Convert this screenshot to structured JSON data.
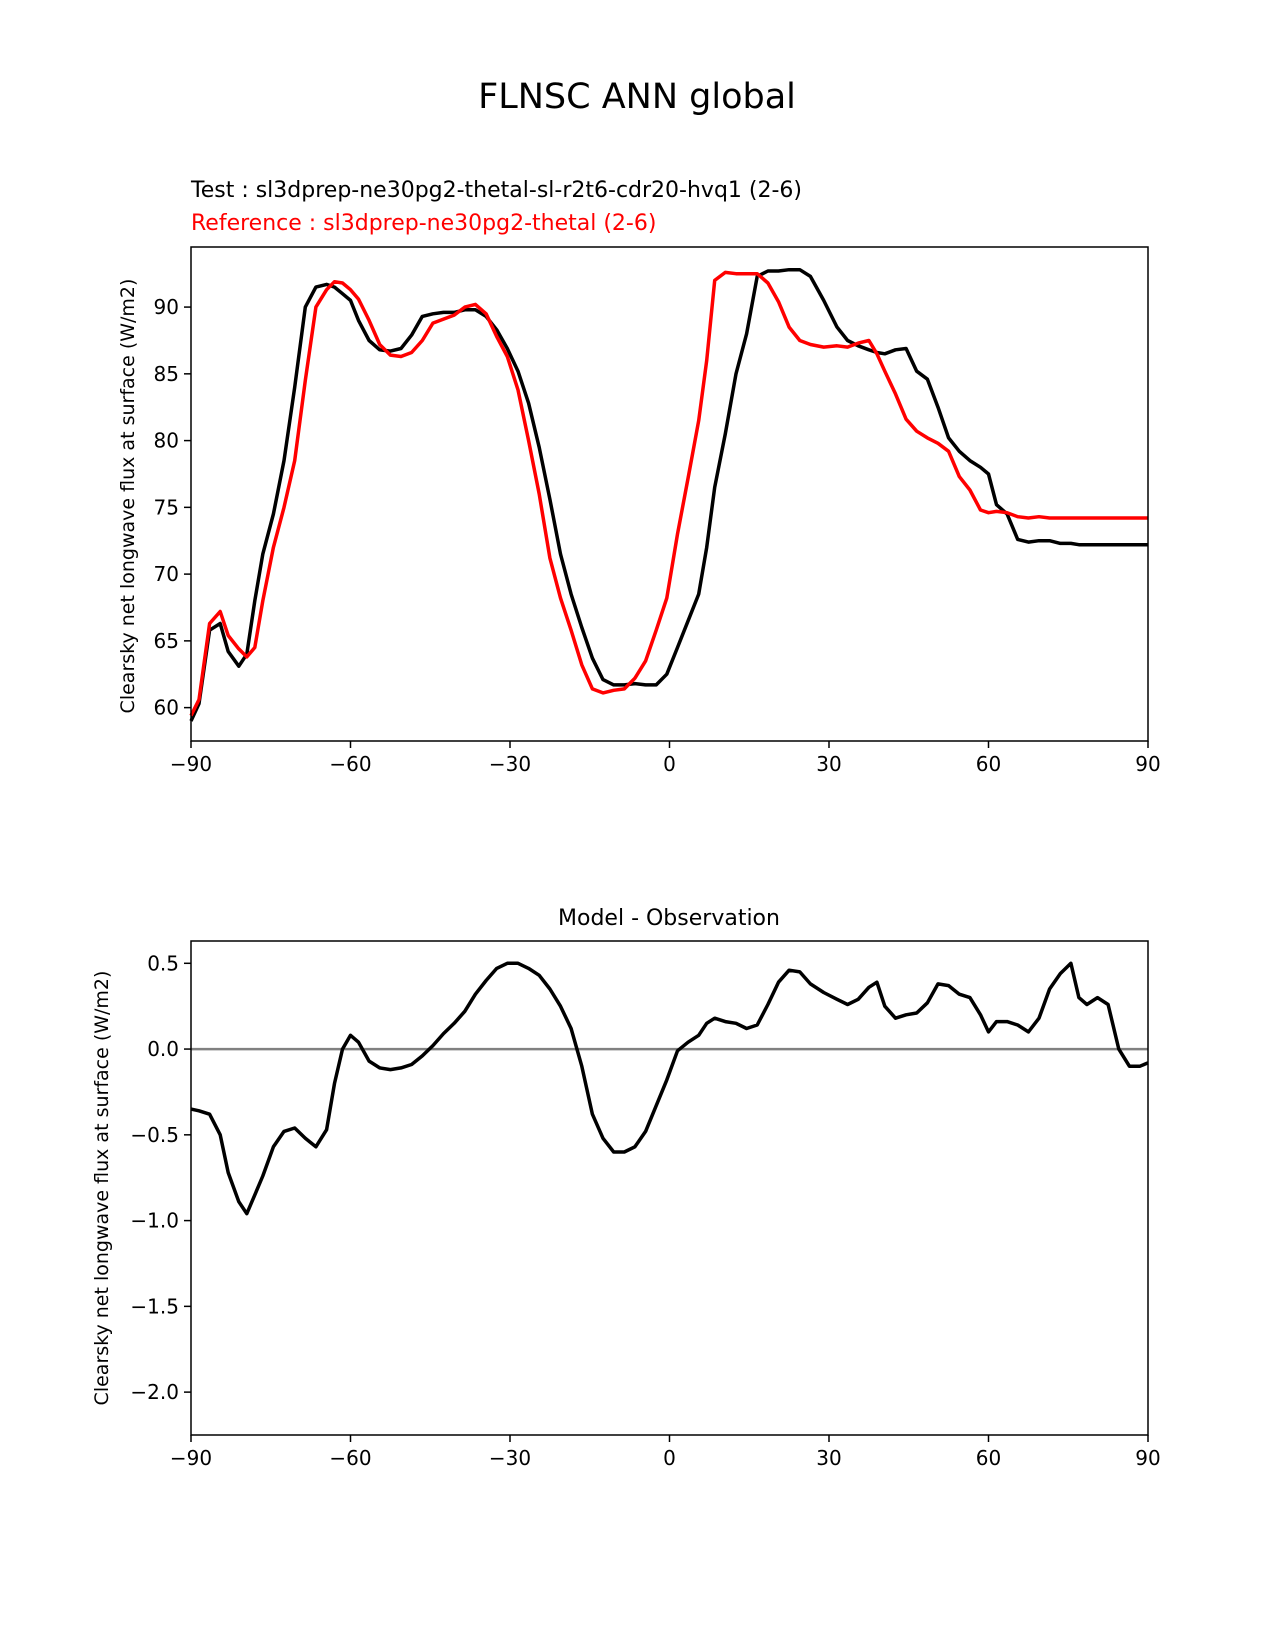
{
  "figure": {
    "title": "FLNSC ANN global"
  },
  "colors": {
    "test": "#000000",
    "reference": "#ff0000",
    "diff": "#000000",
    "zero_line": "#808080"
  },
  "chart_data": [
    {
      "type": "line",
      "test_label": "Test : sl3dprep-ne30pg2-thetal-sl-r2t6-cdr20-hvq1 (2-6)",
      "reference_label": "Reference : sl3dprep-ne30pg2-thetal (2-6)",
      "xlabel": "",
      "ylabel": "Clearsky net longwave flux at surface (W/m2)",
      "xlim": [
        -90,
        90
      ],
      "ylim": [
        57.5,
        94.5
      ],
      "xticks": [
        -90,
        -60,
        -30,
        0,
        30,
        60,
        90
      ],
      "xtick_labels": [
        "−90",
        "−60",
        "−30",
        "0",
        "30",
        "60",
        "90"
      ],
      "yticks": [
        60,
        65,
        70,
        75,
        80,
        85,
        90
      ],
      "ytick_labels": [
        "60",
        "65",
        "70",
        "75",
        "80",
        "85",
        "90"
      ],
      "grid": false,
      "series": [
        {
          "key": "test",
          "x": [
            -90,
            -88.5,
            -86.5,
            -84.5,
            -83,
            -81,
            -79.5,
            -78,
            -76.5,
            -74.5,
            -72.5,
            -70.5,
            -68.5,
            -66.5,
            -64.5,
            -63,
            -61.5,
            -60,
            -58.5,
            -56.5,
            -54.5,
            -52.5,
            -50.5,
            -48.5,
            -46.5,
            -44.5,
            -42.5,
            -40.5,
            -38.5,
            -36.5,
            -34.5,
            -32.5,
            -30.5,
            -28.5,
            -26.5,
            -24.5,
            -22.5,
            -20.5,
            -18.5,
            -16.5,
            -14.5,
            -12.5,
            -10.5,
            -8.5,
            -6.5,
            -4.5,
            -2.5,
            -0.5,
            1.5,
            3.5,
            5.5,
            7,
            8.5,
            10.5,
            12.5,
            14.5,
            16.5,
            18.5,
            20.5,
            22.5,
            24.5,
            26.5,
            29,
            31.5,
            33.5,
            35.5,
            37.5,
            39,
            40.5,
            42.5,
            44.5,
            46.5,
            48.5,
            50.5,
            52.5,
            54.5,
            56.5,
            58.5,
            60,
            61.5,
            63.5,
            65.5,
            67.5,
            69.5,
            71.5,
            73.5,
            75.5,
            77,
            78.5,
            80.5,
            82.5,
            84.5,
            86.5,
            88.5,
            90
          ],
          "y": [
            59,
            60.3,
            65.8,
            66.3,
            64.2,
            63.1,
            64,
            68,
            71.5,
            74.5,
            78.5,
            84,
            90,
            91.5,
            91.7,
            91.5,
            91,
            90.5,
            89,
            87.5,
            86.8,
            86.7,
            86.9,
            87.9,
            89.3,
            89.5,
            89.6,
            89.6,
            89.8,
            89.8,
            89.3,
            88.3,
            86.9,
            85.2,
            82.8,
            79.5,
            75.6,
            71.5,
            68.5,
            66,
            63.7,
            62.1,
            61.7,
            61.7,
            61.8,
            61.7,
            61.7,
            62.5,
            64.5,
            66.5,
            68.5,
            72,
            76.5,
            80.5,
            85,
            88,
            92.3,
            92.7,
            92.7,
            92.8,
            92.8,
            92.3,
            90.5,
            88.5,
            87.5,
            87.1,
            86.8,
            86.6,
            86.5,
            86.8,
            86.9,
            85.2,
            84.6,
            82.5,
            80.2,
            79.2,
            78.5,
            78,
            77.5,
            75.2,
            74.5,
            72.6,
            72.4,
            72.5,
            72.5,
            72.3,
            72.3,
            72.2,
            72.2,
            72.2,
            72.2,
            72.2,
            72.2,
            72.2,
            72.2
          ]
        },
        {
          "key": "reference",
          "x": [
            -90,
            -88.5,
            -86.5,
            -84.5,
            -83,
            -81,
            -79.5,
            -78,
            -76.5,
            -74.5,
            -72.5,
            -70.5,
            -68.5,
            -66.5,
            -64.5,
            -63,
            -61.5,
            -60,
            -58.5,
            -56.5,
            -54.5,
            -52.5,
            -50.5,
            -48.5,
            -46.5,
            -44.5,
            -42.5,
            -40.5,
            -38.5,
            -36.5,
            -34.5,
            -32.5,
            -30.5,
            -28.5,
            -26.5,
            -24.5,
            -22.5,
            -20.5,
            -18.5,
            -16.5,
            -14.5,
            -12.5,
            -10.5,
            -8.5,
            -6.5,
            -4.5,
            -2.5,
            -0.5,
            1.5,
            3.5,
            5.5,
            7,
            8.5,
            10.5,
            12.5,
            14.5,
            16.5,
            18.5,
            20.5,
            22.5,
            24.5,
            26.5,
            29,
            31.5,
            33.5,
            35.5,
            37.5,
            39,
            40.5,
            42.5,
            44.5,
            46.5,
            48.5,
            50.5,
            52.5,
            54.5,
            56.5,
            58.5,
            60,
            61.5,
            63.5,
            65.5,
            67.5,
            69.5,
            71.5,
            73.5,
            75.5,
            77,
            78.5,
            80.5,
            82.5,
            84.5,
            86.5,
            88.5,
            90
          ],
          "y": [
            59.4,
            60.6,
            66.3,
            67.2,
            65.4,
            64.4,
            63.8,
            64.5,
            68,
            72,
            75,
            78.5,
            84.5,
            90,
            91.3,
            91.9,
            91.8,
            91.3,
            90.6,
            89,
            87.2,
            86.4,
            86.3,
            86.6,
            87.5,
            88.8,
            89.1,
            89.4,
            90,
            90.2,
            89.5,
            87.8,
            86.3,
            83.8,
            80,
            76,
            71.2,
            68.2,
            65.8,
            63.2,
            61.4,
            61.1,
            61.3,
            61.4,
            62.2,
            63.5,
            65.8,
            68.2,
            73,
            77.2,
            81.5,
            86,
            92,
            92.6,
            92.5,
            92.5,
            92.5,
            91.8,
            90.4,
            88.5,
            87.5,
            87.2,
            87,
            87.1,
            87,
            87.3,
            87.5,
            86.5,
            85.2,
            83.5,
            81.6,
            80.7,
            80.2,
            79.8,
            79.2,
            77.3,
            76.3,
            74.8,
            74.6,
            74.7,
            74.6,
            74.3,
            74.2,
            74.3,
            74.2,
            74.2,
            74.2,
            74.2,
            74.2,
            74.2,
            74.2,
            74.2,
            74.2,
            74.2,
            74.2
          ]
        }
      ]
    },
    {
      "type": "line",
      "title": "Model - Observation",
      "xlabel": "",
      "ylabel": "Clearsky net longwave flux at surface (W/m2)",
      "xlim": [
        -90,
        90
      ],
      "ylim": [
        -2.25,
        0.63
      ],
      "xticks": [
        -90,
        -60,
        -30,
        0,
        30,
        60,
        90
      ],
      "xtick_labels": [
        "−90",
        "−60",
        "−30",
        "0",
        "30",
        "60",
        "90"
      ],
      "yticks": [
        -2.0,
        -1.5,
        -1.0,
        -0.5,
        0.0,
        0.5
      ],
      "ytick_labels": [
        "−2.0",
        "−1.5",
        "−1.0",
        "−0.5",
        "0.0",
        "0.5"
      ],
      "grid": false,
      "zero_line": true,
      "series": [
        {
          "key": "diff",
          "x": [
            -90,
            -88.5,
            -86.5,
            -84.5,
            -83,
            -81,
            -79.5,
            -78,
            -76.5,
            -74.5,
            -72.5,
            -70.5,
            -68.5,
            -66.5,
            -64.5,
            -63,
            -61.5,
            -60,
            -58.5,
            -56.5,
            -54.5,
            -52.5,
            -50.5,
            -48.5,
            -46.5,
            -44.5,
            -42.5,
            -40.5,
            -38.5,
            -36.5,
            -34.5,
            -32.5,
            -30.5,
            -28.5,
            -26.5,
            -24.5,
            -22.5,
            -20.5,
            -18.5,
            -16.5,
            -14.5,
            -12.5,
            -10.5,
            -8.5,
            -6.5,
            -4.5,
            -2.5,
            -0.5,
            1.5,
            3.5,
            5.5,
            7,
            8.5,
            10.5,
            12.5,
            14.5,
            16.5,
            18.5,
            20.5,
            22.5,
            24.5,
            26.5,
            29,
            31.5,
            33.5,
            35.5,
            37.5,
            39,
            40.5,
            42.5,
            44.5,
            46.5,
            48.5,
            50.5,
            52.5,
            54.5,
            56.5,
            58.5,
            60,
            61.5,
            63.5,
            65.5,
            67.5,
            69.5,
            71.5,
            73.5,
            75.5,
            77,
            78.5,
            80.5,
            82.5,
            84.5,
            86.5,
            88.5,
            90
          ],
          "y": [
            -0.35,
            -0.36,
            -0.38,
            -0.5,
            -0.72,
            -0.89,
            -0.96,
            -0.85,
            -0.74,
            -0.57,
            -0.48,
            -0.46,
            -0.52,
            -0.57,
            -0.47,
            -0.2,
            0,
            0.08,
            0.04,
            -0.07,
            -0.11,
            -0.12,
            -0.11,
            -0.09,
            -0.04,
            0.02,
            0.09,
            0.15,
            0.22,
            0.32,
            0.4,
            0.47,
            0.5,
            0.5,
            0.47,
            0.43,
            0.35,
            0.25,
            0.12,
            -0.1,
            -0.38,
            -0.52,
            -0.6,
            -0.6,
            -0.57,
            -0.48,
            -0.33,
            -0.18,
            -0.01,
            0.04,
            0.08,
            0.15,
            0.18,
            0.16,
            0.15,
            0.12,
            0.14,
            0.26,
            0.39,
            0.46,
            0.45,
            0.38,
            0.33,
            0.29,
            0.26,
            0.29,
            0.36,
            0.39,
            0.25,
            0.18,
            0.2,
            0.21,
            0.27,
            0.38,
            0.37,
            0.32,
            0.3,
            0.2,
            0.1,
            0.16,
            0.16,
            0.14,
            0.1,
            0.18,
            0.35,
            0.44,
            0.5,
            0.3,
            0.26,
            0.3,
            0.26,
            0,
            -0.1,
            -0.1,
            -0.08
          ]
        }
      ]
    }
  ]
}
